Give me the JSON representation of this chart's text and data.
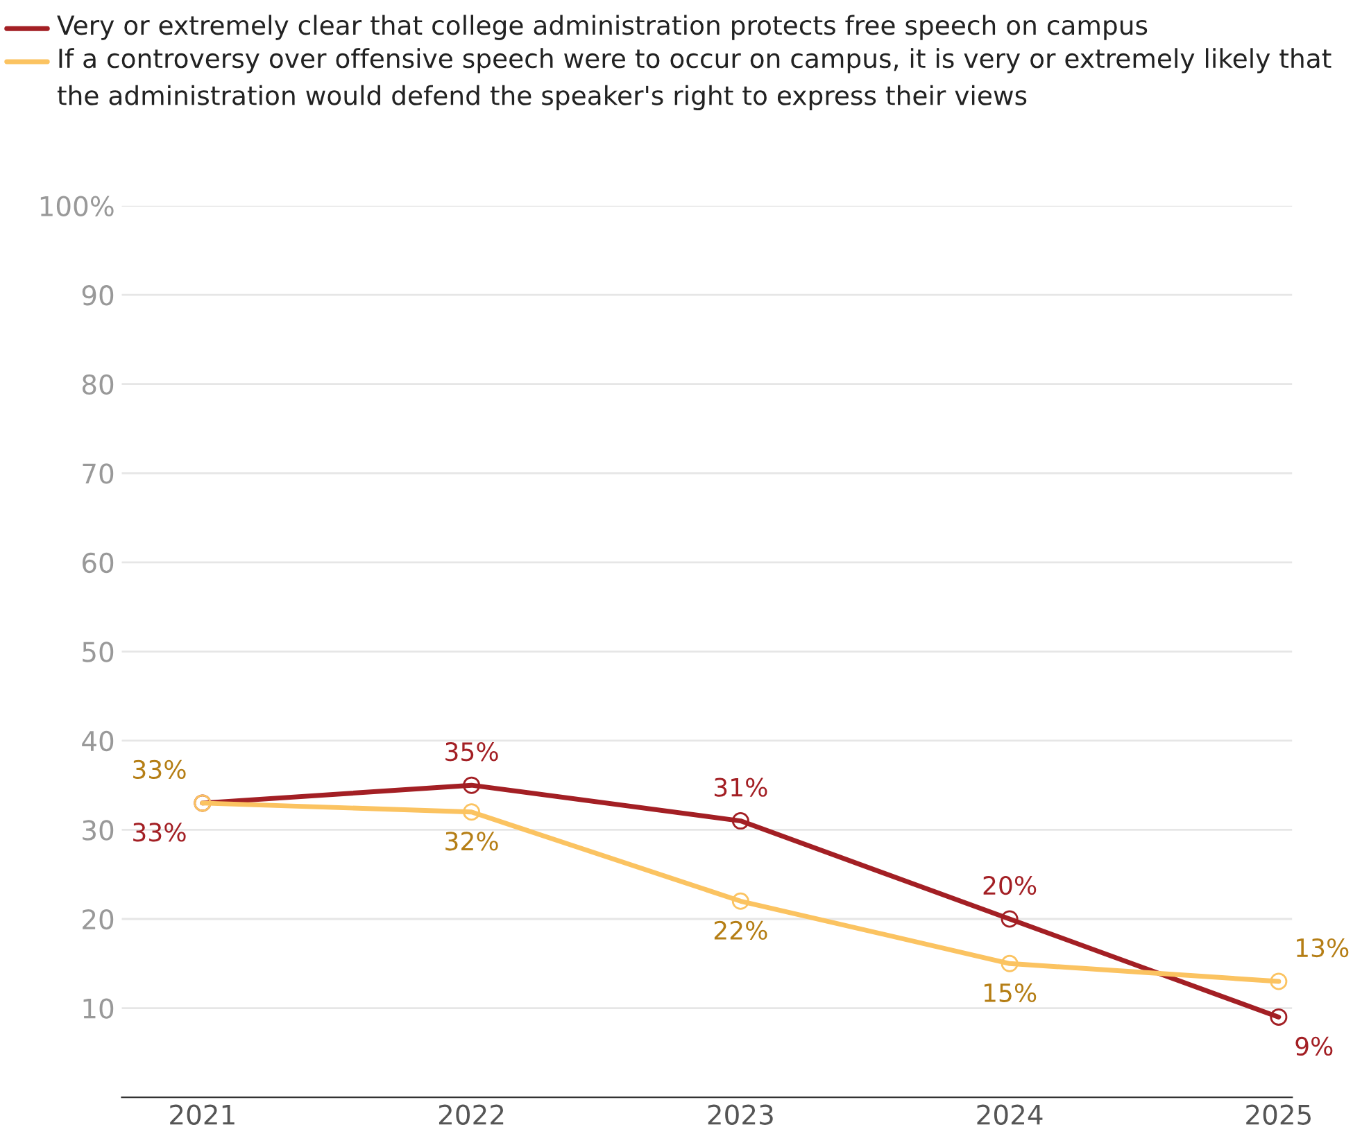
{
  "chart_data": {
    "type": "line",
    "categories": [
      "2021",
      "2022",
      "2023",
      "2024",
      "2025"
    ],
    "series": [
      {
        "name": "Very or extremely clear that college administration protects free speech on campus",
        "color": "#a31f24",
        "values": [
          33,
          35,
          31,
          20,
          9
        ],
        "value_labels": [
          "33%",
          "35%",
          "31%",
          "20%",
          "9%"
        ]
      },
      {
        "name": "If a controversy over offensive speech were to occur on campus, it is very or extremely likely that the administration would defend the speaker's right to express their views",
        "color": "#fbc361",
        "values": [
          33,
          32,
          22,
          15,
          13
        ],
        "value_labels": [
          "33%",
          "32%",
          "22%",
          "15%",
          "13%"
        ]
      }
    ],
    "ylim": [
      0,
      100
    ],
    "yticks": [
      10,
      20,
      30,
      40,
      50,
      60,
      70,
      80,
      90,
      {
        "value": 100,
        "label": "100%"
      }
    ],
    "grid": "y",
    "legend": "top",
    "marker": "circle"
  }
}
